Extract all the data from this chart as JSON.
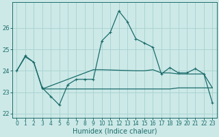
{
  "title": "",
  "xlabel": "Humidex (Indice chaleur)",
  "xlim": [
    -0.5,
    23.5
  ],
  "ylim": [
    21.8,
    27.2
  ],
  "yticks": [
    22,
    23,
    24,
    25,
    26
  ],
  "xticks": [
    0,
    1,
    2,
    3,
    4,
    5,
    6,
    7,
    8,
    9,
    10,
    11,
    12,
    13,
    14,
    15,
    16,
    17,
    18,
    19,
    20,
    21,
    22,
    23
  ],
  "bg_color": "#cce9e7",
  "line_color": "#1a6b6b",
  "grid_color": "#aad4d2",
  "series1_x": [
    0,
    1,
    2,
    3,
    4,
    5,
    6,
    7,
    8,
    9,
    10,
    11,
    12,
    13,
    14,
    15,
    16,
    17,
    18,
    19,
    20,
    21,
    22,
    23
  ],
  "series1_y": [
    24.0,
    24.7,
    24.4,
    23.2,
    22.8,
    22.4,
    23.35,
    23.6,
    23.6,
    23.6,
    25.4,
    25.8,
    26.8,
    26.3,
    25.5,
    25.3,
    25.1,
    23.85,
    24.15,
    23.9,
    23.9,
    24.1,
    23.85,
    22.5
  ],
  "series2_x": [
    0,
    1,
    2,
    3,
    9,
    10,
    14,
    15,
    16,
    17,
    18,
    19,
    20,
    21,
    22,
    23
  ],
  "series2_y": [
    24.0,
    24.65,
    24.4,
    23.15,
    24.05,
    24.05,
    24.0,
    24.0,
    24.05,
    23.9,
    23.9,
    23.85,
    23.85,
    23.85,
    23.85,
    23.2
  ],
  "series3_x": [
    3,
    4,
    10,
    11,
    12,
    13,
    14,
    15,
    16,
    17,
    18,
    19,
    20,
    21,
    22,
    23
  ],
  "series3_y": [
    23.15,
    23.15,
    23.15,
    23.15,
    23.15,
    23.15,
    23.15,
    23.15,
    23.15,
    23.15,
    23.15,
    23.2,
    23.2,
    23.2,
    23.2,
    23.2
  ]
}
